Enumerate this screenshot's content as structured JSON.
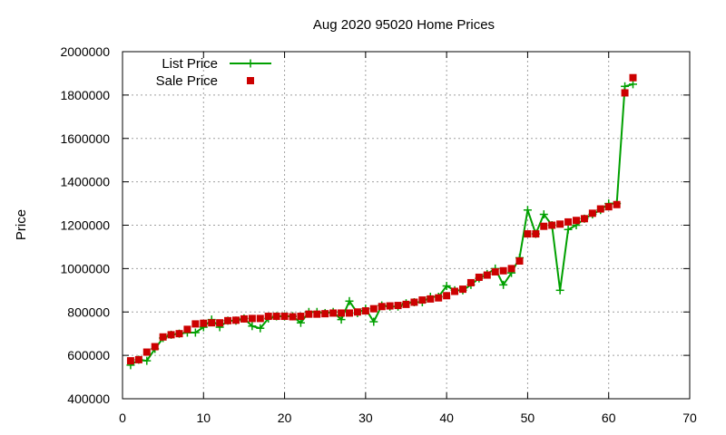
{
  "chart_data": {
    "type": "line",
    "title": "Aug 2020 95020 Home Prices",
    "xlabel": "",
    "ylabel": "Price",
    "xlim": [
      0,
      70
    ],
    "ylim": [
      400000,
      2000000
    ],
    "xticks": [
      "0",
      "10",
      "20",
      "30",
      "40",
      "50",
      "60",
      "70"
    ],
    "yticks": [
      "400000",
      "600000",
      "800000",
      "1000000",
      "1200000",
      "1400000",
      "1600000",
      "1800000",
      "2000000"
    ],
    "grid": true,
    "legend": "top-left",
    "x": [
      1,
      2,
      3,
      4,
      5,
      6,
      7,
      8,
      9,
      10,
      11,
      12,
      13,
      14,
      15,
      16,
      17,
      18,
      19,
      20,
      21,
      22,
      23,
      24,
      25,
      26,
      27,
      28,
      29,
      30,
      31,
      32,
      33,
      34,
      35,
      36,
      37,
      38,
      39,
      40,
      41,
      42,
      43,
      44,
      45,
      46,
      47,
      48,
      49,
      50,
      51,
      52,
      53,
      54,
      55,
      56,
      57,
      58,
      59,
      60,
      61,
      62,
      63
    ],
    "series": [
      {
        "name": "List Price",
        "color": "#00a000",
        "style": "line-plus",
        "values": [
          555000,
          580000,
          575000,
          630000,
          680000,
          695000,
          700000,
          705000,
          705000,
          730000,
          765000,
          730000,
          760000,
          760000,
          770000,
          735000,
          725000,
          770000,
          780000,
          780000,
          780000,
          750000,
          800000,
          800000,
          795000,
          800000,
          765000,
          850000,
          795000,
          815000,
          755000,
          830000,
          825000,
          825000,
          840000,
          845000,
          845000,
          870000,
          870000,
          920000,
          900000,
          900000,
          925000,
          955000,
          975000,
          1000000,
          925000,
          980000,
          1050000,
          1270000,
          1160000,
          1250000,
          1200000,
          900000,
          1180000,
          1200000,
          1230000,
          1250000,
          1270000,
          1300000,
          1300000,
          1840000,
          1850000
        ]
      },
      {
        "name": "Sale Price",
        "color": "#cc0000",
        "style": "square",
        "values": [
          575000,
          580000,
          615000,
          640000,
          685000,
          695000,
          700000,
          720000,
          745000,
          748000,
          750000,
          750000,
          760000,
          762000,
          768000,
          770000,
          770000,
          780000,
          780000,
          780000,
          778000,
          780000,
          790000,
          790000,
          792000,
          795000,
          795000,
          795000,
          800000,
          805000,
          815000,
          825000,
          828000,
          830000,
          835000,
          845000,
          855000,
          860000,
          865000,
          875000,
          895000,
          905000,
          935000,
          960000,
          970000,
          985000,
          990000,
          1000000,
          1035000,
          1160000,
          1160000,
          1195000,
          1200000,
          1205000,
          1215000,
          1222000,
          1230000,
          1255000,
          1275000,
          1285000,
          1295000,
          1810000,
          1880000
        ]
      }
    ]
  }
}
